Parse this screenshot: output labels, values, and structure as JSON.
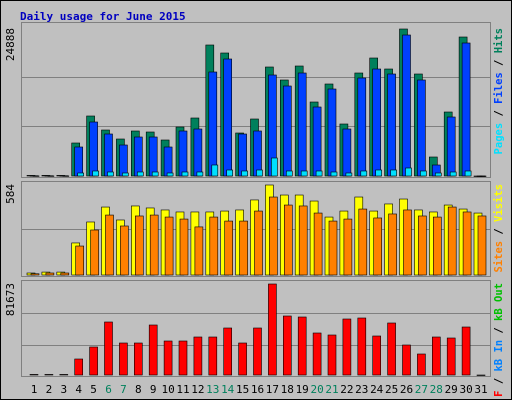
{
  "chart_data": [
    {
      "type": "bar",
      "title": "Daily usage for June 2015",
      "legend_separator": " / ",
      "ylim": [
        0,
        24888
      ],
      "yticks": [
        24888
      ],
      "series": [
        {
          "name": "Hits",
          "color": "#00805C",
          "values": [
            100,
            100,
            100,
            5587,
            10158,
            7788,
            6264,
            7619,
            7449,
            6095,
            8296,
            9820,
            22179,
            20824,
            7280,
            9650,
            18454,
            16253,
            18623,
            12528,
            15576,
            8804,
            17438,
            19977,
            18115,
            24888,
            17269,
            3217,
            10835,
            23533,
            0
          ]
        },
        {
          "name": "Files",
          "color": "#0040FF",
          "values": [
            50,
            50,
            50,
            4910,
            9142,
            7111,
            5248,
            6603,
            6603,
            4910,
            7619,
            7957,
            17608,
            19808,
            7111,
            7619,
            17100,
            15237,
            17438,
            11682,
            14729,
            7957,
            16591,
            18115,
            17269,
            23871,
            16253,
            1862,
            9989,
            22517,
            0
          ]
        },
        {
          "name": "Pages",
          "color": "#00E0FF",
          "values": [
            20,
            20,
            20,
            508,
            847,
            677,
            508,
            677,
            677,
            508,
            677,
            677,
            1862,
            1016,
            847,
            1016,
            3047,
            847,
            847,
            847,
            677,
            508,
            847,
            1016,
            1016,
            1354,
            847,
            508,
            677,
            847,
            0
          ]
        }
      ]
    },
    {
      "type": "bar",
      "legend_separator": " / ",
      "ylim": [
        0,
        584
      ],
      "yticks": [
        584
      ],
      "series": [
        {
          "name": "Visits",
          "color": "#FFFF00",
          "values": [
            13,
            19,
            19,
            208,
            344,
            441,
            357,
            448,
            435,
            422,
            409,
            409,
            409,
            415,
            422,
            487,
            584,
            519,
            519,
            480,
            376,
            415,
            506,
            415,
            461,
            493,
            422,
            409,
            454,
            428,
            402
          ]
        },
        {
          "name": "Sites",
          "color": "#FF8000",
          "values": [
            8,
            13,
            13,
            188,
            292,
            389,
            318,
            383,
            389,
            376,
            363,
            312,
            376,
            350,
            350,
            415,
            506,
            454,
            448,
            402,
            350,
            363,
            428,
            370,
            396,
            422,
            383,
            376,
            441,
            409,
            383
          ]
        }
      ]
    },
    {
      "type": "bar",
      "legend_separator": " / ",
      "ylim": [
        0,
        81673
      ],
      "yticks": [
        81673
      ],
      "categories": [
        "1",
        "2",
        "3",
        "4",
        "5",
        "6",
        "7",
        "8",
        "9",
        "10",
        "11",
        "12",
        "13",
        "14",
        "15",
        "16",
        "17",
        "18",
        "19",
        "20",
        "21",
        "22",
        "23",
        "24",
        "25",
        "26",
        "27",
        "28",
        "29",
        "30",
        "31"
      ],
      "label_colors": [
        "#000000",
        "#000000",
        "#000000",
        "#000000",
        "#000000",
        "#00805C",
        "#00805C",
        "#000000",
        "#000000",
        "#000000",
        "#000000",
        "#000000",
        "#00805C",
        "#00805C",
        "#000000",
        "#000000",
        "#000000",
        "#000000",
        "#000000",
        "#00805C",
        "#00805C",
        "#000000",
        "#000000",
        "#000000",
        "#000000",
        "#000000",
        "#00805C",
        "#00805C",
        "#000000",
        "#000000",
        "#000000"
      ],
      "series": [
        {
          "name": "kB F",
          "color": "#FF0000",
          "values": [
            500,
            500,
            500,
            14360,
            25130,
            47568,
            28720,
            28720,
            44875,
            30515,
            30515,
            34105,
            34105,
            42183,
            28720,
            42183,
            81673,
            52953,
            52055,
            37695,
            35900,
            50260,
            51158,
            35003,
            46670,
            26925,
            18848,
            34105,
            33208,
            43080,
            0
          ]
        }
      ],
      "extra_legend": [
        {
          "name": "kB In",
          "color": "#0080FF"
        },
        {
          "name": "kB Out",
          "color": "#00C000"
        }
      ]
    }
  ]
}
